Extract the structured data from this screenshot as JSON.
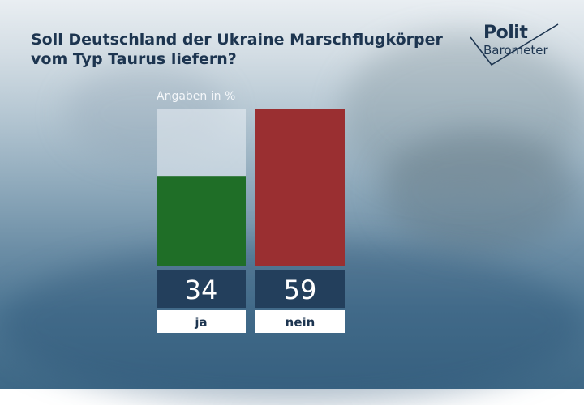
{
  "title_lines": [
    "Soll Deutschland der Ukraine Marschflugkörper",
    "vom Typ Taurus liefern?"
  ],
  "logo": {
    "line1": "Polit",
    "line2": "Barometer"
  },
  "chart_data": {
    "type": "bar",
    "subtitle": "Angaben in %",
    "categories": [
      "ja",
      "nein"
    ],
    "values": [
      34,
      59
    ],
    "colors": [
      "#1f6e27",
      "#9a2f31"
    ],
    "ylim": [
      0,
      59
    ]
  },
  "colors": {
    "value_box": "#233f5c",
    "label_box": "#ffffff",
    "text_dark": "#1d3550"
  }
}
